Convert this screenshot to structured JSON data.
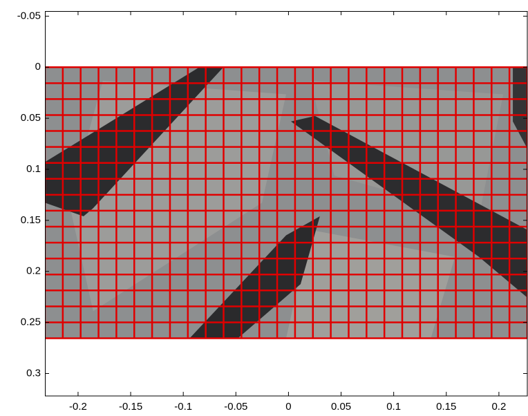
{
  "chart_data": {
    "type": "image-grid",
    "xlim": [
      -0.2315,
      0.227
    ],
    "ylim": [
      -0.055,
      0.322
    ],
    "y_reversed": true,
    "xticks": [
      -0.2,
      -0.15,
      -0.1,
      -0.05,
      0,
      0.05,
      0.1,
      0.15,
      0.2
    ],
    "yticks": [
      -0.05,
      0,
      0.05,
      0.1,
      0.15,
      0.2,
      0.25,
      0.3
    ],
    "image_xlim": [
      -0.2315,
      0.227
    ],
    "image_ylim": [
      0,
      0.2655
    ],
    "grid_columns": 27,
    "grid_rows": 17,
    "grid_color": "#e00000"
  }
}
